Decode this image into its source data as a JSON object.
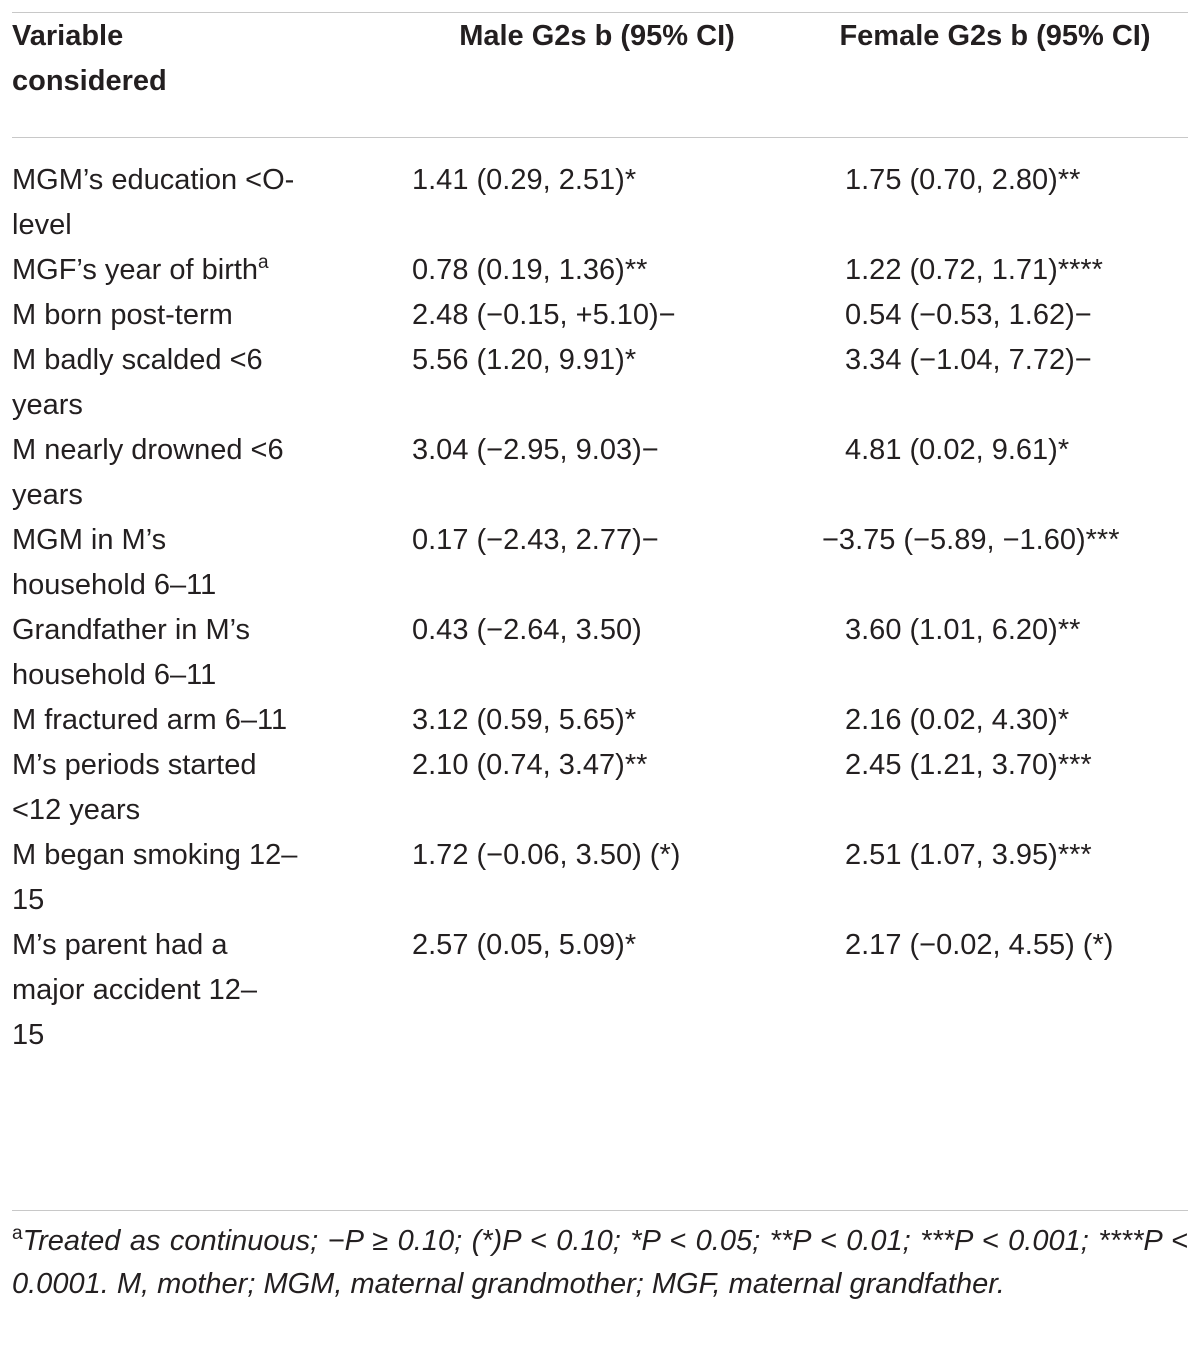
{
  "table": {
    "headers": {
      "variable": "Variable considered",
      "male": "Male G2s b (95% CI)",
      "female": "Female G2s b (95% CI)"
    },
    "rows": [
      {
        "variable": "MGM’s education <O-level",
        "sup": "",
        "male": "1.41 (0.29, 2.51)*",
        "female": "1.75 (0.70, 2.80)**"
      },
      {
        "variable": "MGF’s year of birth",
        "sup": "a",
        "male": "0.78 (0.19, 1.36)**",
        "female": "1.22 (0.72, 1.71)****"
      },
      {
        "variable": "M born post-term",
        "sup": "",
        "male": "2.48 (−0.15, +5.10)−",
        "female": "0.54 (−0.53, 1.62)−"
      },
      {
        "variable": "M badly scalded <6 years",
        "sup": "",
        "male": "5.56 (1.20, 9.91)*",
        "female": "3.34 (−1.04, 7.72)−"
      },
      {
        "variable": "M nearly drowned <6 years",
        "sup": "",
        "male": "3.04 (−2.95, 9.03)−",
        "female": "4.81 (0.02, 9.61)*"
      },
      {
        "variable": "MGM in M’s household 6–11",
        "sup": "",
        "male": "0.17 (−2.43, 2.77)−",
        "female": "−3.75 (−5.89, −1.60)***"
      },
      {
        "variable": "Grandfather in M’s household 6–11",
        "sup": "",
        "male": "0.43 (−2.64, 3.50)",
        "female": "3.60 (1.01, 6.20)**"
      },
      {
        "variable": "M fractured arm 6–11",
        "sup": "",
        "male": "3.12 (0.59, 5.65)*",
        "female": "2.16 (0.02, 4.30)*"
      },
      {
        "variable": "M’s periods started <12 years",
        "sup": "",
        "male": "2.10 (0.74, 3.47)**",
        "female": "2.45 (1.21, 3.70)***"
      },
      {
        "variable": "M began smoking 12–15",
        "sup": "",
        "male": "1.72 (−0.06, 3.50) (*)",
        "female": "2.51 (1.07, 3.95)***"
      },
      {
        "variable": "M’s parent had a major accident 12–15",
        "sup": "",
        "male": "2.57 (0.05, 5.09)*",
        "female": "2.17 (−0.02, 4.55) (*)"
      }
    ]
  },
  "footnote": {
    "marker": "a",
    "text": "Treated as continuous; −P ≥ 0.10; (*)P < 0.10; *P < 0.05; **P < 0.01; ***P < 0.001; ****P < 0.0001. M, mother; MGM, maternal grandmother; MGF, maternal grandfather."
  }
}
